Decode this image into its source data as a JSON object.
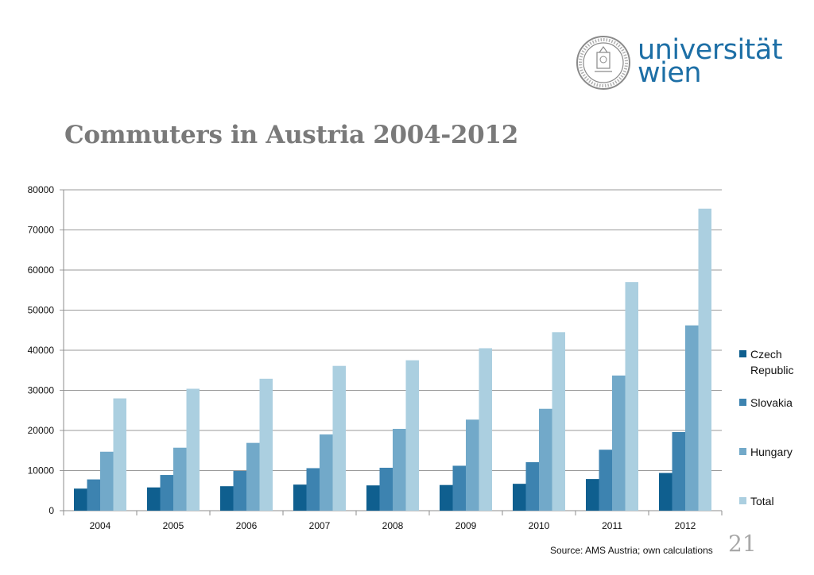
{
  "slide": {
    "title": "Commuters in Austria 2004-2012",
    "source": "Source: AMS Austria; own calculations",
    "page_number": "21"
  },
  "logo": {
    "line1": "universität",
    "line2": "wien",
    "color": "#1d6fa6"
  },
  "chart_data": {
    "type": "bar",
    "title": "",
    "xlabel": "",
    "ylabel": "",
    "categories": [
      "2004",
      "2005",
      "2006",
      "2007",
      "2008",
      "2009",
      "2010",
      "2011",
      "2012"
    ],
    "ylim": [
      0,
      80000
    ],
    "yticks": [
      0,
      10000,
      20000,
      30000,
      40000,
      50000,
      60000,
      70000,
      80000
    ],
    "grid": true,
    "legend_position": "right",
    "series": [
      {
        "name": "Czech Republic",
        "color": "#0f5f8f",
        "values": [
          5500,
          5800,
          6100,
          6500,
          6300,
          6400,
          6700,
          7900,
          9400
        ]
      },
      {
        "name": "Slovakia",
        "color": "#3d83b0",
        "values": [
          7800,
          8900,
          9900,
          10600,
          10700,
          11200,
          12100,
          15200,
          19600
        ]
      },
      {
        "name": "Hungary",
        "color": "#72a9c9",
        "values": [
          14700,
          15700,
          16900,
          19000,
          20400,
          22700,
          25400,
          33700,
          46200
        ]
      },
      {
        "name": "Total",
        "color": "#abcfe0",
        "values": [
          28000,
          30400,
          32900,
          36100,
          37500,
          40500,
          44500,
          57000,
          75300
        ]
      }
    ]
  }
}
